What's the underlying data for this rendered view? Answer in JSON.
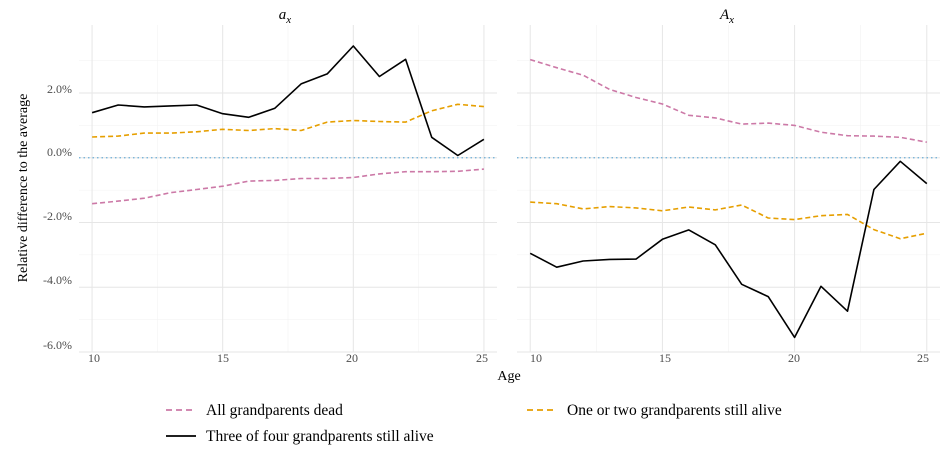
{
  "chart_data": {
    "type": "line",
    "ylabel": "Relative difference to the average",
    "xlabel": "Age",
    "x_ticks": [
      "10",
      "15",
      "20",
      "25"
    ],
    "y_ticks": [
      "2.0%",
      "0.0%",
      "-2.0%",
      "-4.0%",
      "-6.0%"
    ],
    "y_tick_values": [
      2.0,
      0.0,
      -2.0,
      -4.0,
      -6.0
    ],
    "xlim": [
      9.5,
      25.5
    ],
    "ylim": [
      -6.0,
      4.1
    ],
    "grid": true,
    "reference_line": {
      "y": 0.0,
      "color": "#6baed6",
      "style": "dotted"
    },
    "legend": {
      "position": "bottom",
      "entries": [
        {
          "name": "All grandparents dead",
          "color": "#cc79a7",
          "dash": "dashed"
        },
        {
          "name": "One or two grandparents still alive",
          "color": "#e69f00",
          "dash": "dashed"
        },
        {
          "name": "Three of four grandparents still alive",
          "color": "#000000",
          "dash": "solid"
        }
      ]
    },
    "x": [
      10,
      11,
      12,
      13,
      14,
      15,
      16,
      17,
      18,
      19,
      20,
      21,
      22,
      23,
      24,
      25
    ],
    "panels": [
      {
        "title_base": "a",
        "title_sub": "x",
        "series": [
          {
            "name": "All grandparents dead",
            "color": "#cc79a7",
            "dash": "dashed",
            "values": [
              -1.42,
              -1.34,
              -1.25,
              -1.08,
              -0.98,
              -0.88,
              -0.72,
              -0.7,
              -0.64,
              -0.64,
              -0.61,
              -0.5,
              -0.43,
              -0.43,
              -0.42,
              -0.35
            ]
          },
          {
            "name": "One or two grandparents still alive",
            "color": "#e69f00",
            "dash": "dashed",
            "values": [
              0.64,
              0.67,
              0.76,
              0.76,
              0.8,
              0.88,
              0.84,
              0.9,
              0.84,
              1.1,
              1.15,
              1.12,
              1.1,
              1.45,
              1.65,
              1.58
            ]
          },
          {
            "name": "Three of four grandparents still alive",
            "color": "#000000",
            "dash": "solid",
            "values": [
              1.39,
              1.63,
              1.57,
              1.6,
              1.63,
              1.36,
              1.25,
              1.53,
              2.28,
              2.59,
              3.45,
              2.51,
              3.04,
              0.63,
              0.07,
              0.57
            ]
          }
        ]
      },
      {
        "title_base": "A",
        "title_sub": "x",
        "series": [
          {
            "name": "All grandparents dead",
            "color": "#cc79a7",
            "dash": "dashed",
            "values": [
              3.03,
              2.78,
              2.55,
              2.11,
              1.86,
              1.66,
              1.31,
              1.23,
              1.04,
              1.07,
              1.0,
              0.79,
              0.68,
              0.67,
              0.63,
              0.48
            ]
          },
          {
            "name": "One or two grandparents still alive",
            "color": "#e69f00",
            "dash": "dashed",
            "values": [
              -1.37,
              -1.42,
              -1.58,
              -1.51,
              -1.55,
              -1.64,
              -1.52,
              -1.61,
              -1.46,
              -1.86,
              -1.91,
              -1.79,
              -1.75,
              -2.22,
              -2.5,
              -2.33
            ]
          },
          {
            "name": "Three of four grandparents still alive",
            "color": "#000000",
            "dash": "solid",
            "values": [
              -2.95,
              -3.38,
              -3.19,
              -3.14,
              -3.13,
              -2.52,
              -2.23,
              -2.69,
              -3.91,
              -4.29,
              -5.55,
              -3.97,
              -4.74,
              -0.98,
              -0.11,
              -0.8
            ]
          }
        ]
      }
    ]
  }
}
